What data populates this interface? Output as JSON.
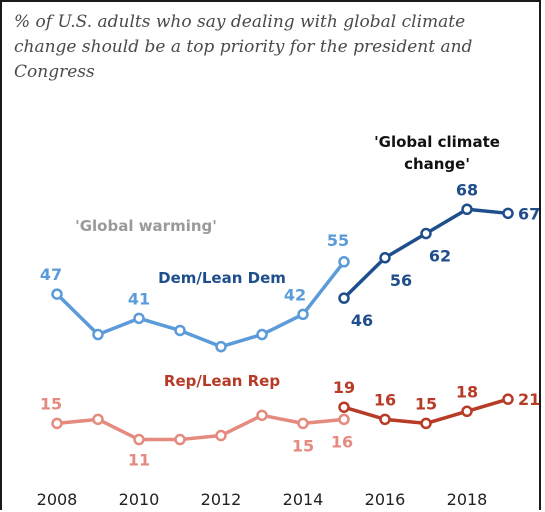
{
  "title": "% of U.S. adults who say dealing with global climate change should be a top priority for the president and Congress",
  "chart_data": {
    "type": "line",
    "title": "% of U.S. adults who say dealing with global climate change should be a top priority for the president and Congress",
    "x_ticks": [
      2008,
      2010,
      2012,
      2014,
      2016,
      2018
    ],
    "xlim": [
      2008,
      2019
    ],
    "ylim": [
      0,
      75
    ],
    "grid": false,
    "annotations": {
      "global_warming": "'Global warming'",
      "global_climate_change_line1": "'Global climate",
      "global_climate_change_line2": "change'"
    },
    "series": [
      {
        "name": "Dem/Lean Dem",
        "segment": "Global warming",
        "color": "#5b9bd9",
        "x": [
          2008,
          2009,
          2010,
          2011,
          2012,
          2013,
          2014,
          2015
        ],
        "values": [
          47,
          37,
          41,
          38,
          34,
          37,
          42,
          55
        ],
        "labels": {
          "2008": "47",
          "2010": "41",
          "2014": "42",
          "2015": "55"
        }
      },
      {
        "name": "Dem/Lean Dem",
        "segment": "Global climate change",
        "color": "#1f4e8c",
        "x": [
          2015,
          2016,
          2017,
          2018,
          2019
        ],
        "values": [
          46,
          56,
          62,
          68,
          67
        ],
        "labels": {
          "2015": "46",
          "2016": "56",
          "2017": "62",
          "2018": "68",
          "2019": "67"
        }
      },
      {
        "name": "Rep/Lean Rep",
        "segment": "Global warming",
        "color": "#e58a7e",
        "x": [
          2008,
          2009,
          2010,
          2011,
          2012,
          2013,
          2014,
          2015
        ],
        "values": [
          15,
          16,
          11,
          11,
          12,
          17,
          15,
          16
        ],
        "labels": {
          "2008": "15",
          "2010": "11",
          "2014": "15",
          "2015": "16"
        }
      },
      {
        "name": "Rep/Lean Rep",
        "segment": "Global climate change",
        "color": "#b73b26",
        "x": [
          2015,
          2016,
          2017,
          2018,
          2019
        ],
        "values": [
          19,
          16,
          15,
          18,
          21
        ],
        "labels": {
          "2015": "19",
          "2016": "16",
          "2017": "15",
          "2018": "18",
          "2019": "21"
        }
      }
    ]
  }
}
